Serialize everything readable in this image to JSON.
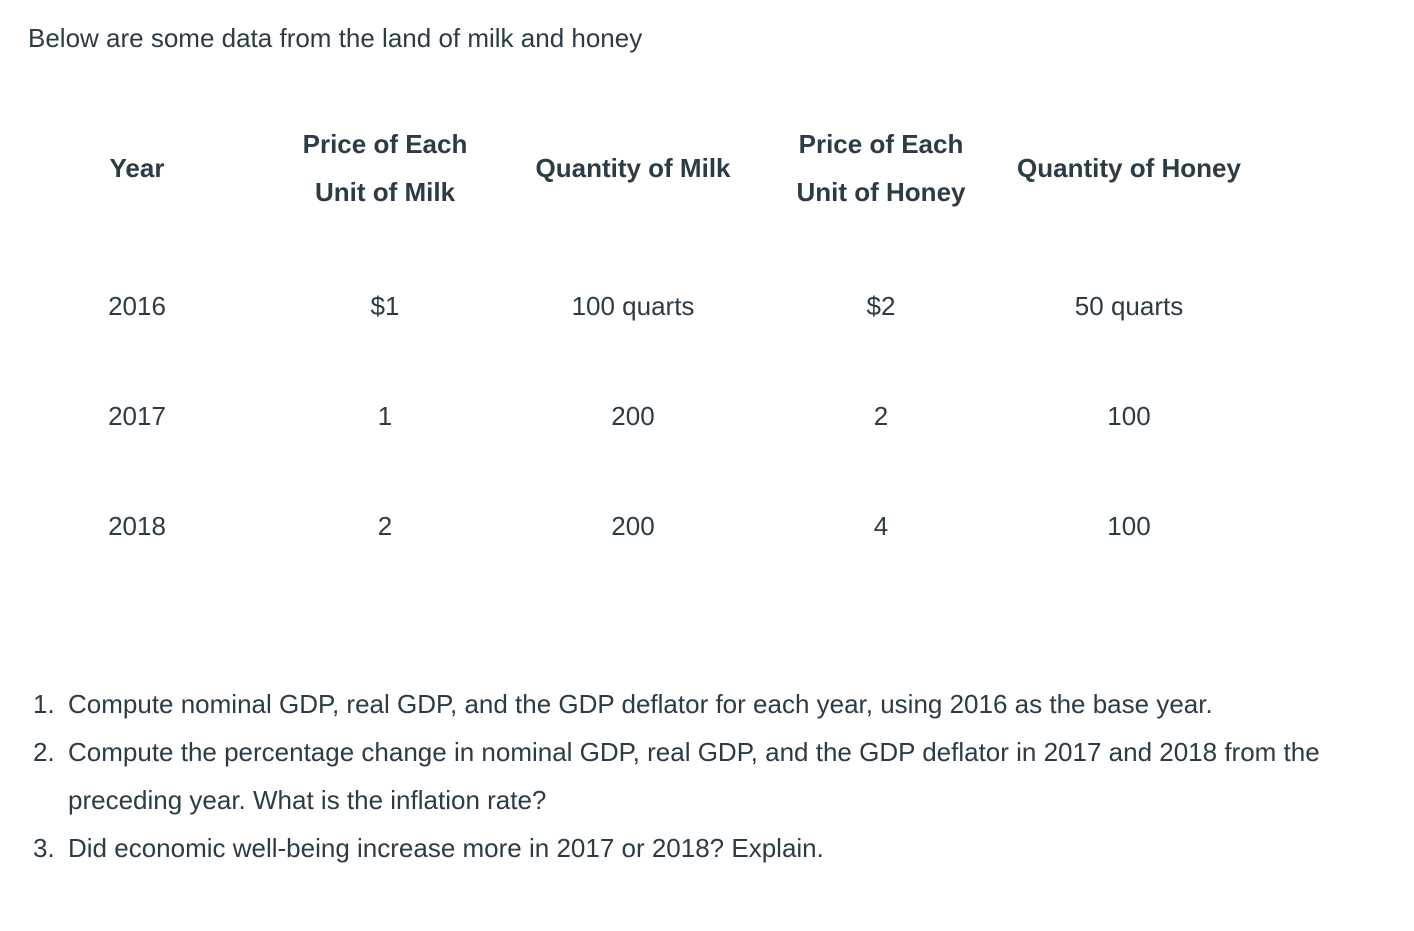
{
  "title": "Below are some data from the land of milk and honey",
  "colors": {
    "text": "#2d3b45",
    "background": "#ffffff"
  },
  "table": {
    "headers": [
      "Year",
      "Price of Each\nUnit of Milk",
      "Quantity of Milk",
      "Price of Each\nUnit of Honey",
      "Quantity of Honey"
    ],
    "rows": [
      [
        "2016",
        "$1",
        "100 quarts",
        "$2",
        "50 quarts"
      ],
      [
        "2017",
        "1",
        "200",
        "2",
        "100"
      ],
      [
        "2018",
        "2",
        "200",
        "4",
        "100"
      ]
    ]
  },
  "questions": [
    {
      "number": "1.",
      "text": "Compute nominal GDP, real GDP, and the GDP deflator for each year, using 2016 as the base year."
    },
    {
      "number": "2.",
      "text": "Compute the percentage change in nominal GDP, real GDP, and the GDP deflator in 2017 and 2018 from the preceding year. What is the inflation rate?"
    },
    {
      "number": "3.",
      "text": "Did economic well-being increase more in 2017 or 2018? Explain."
    }
  ]
}
